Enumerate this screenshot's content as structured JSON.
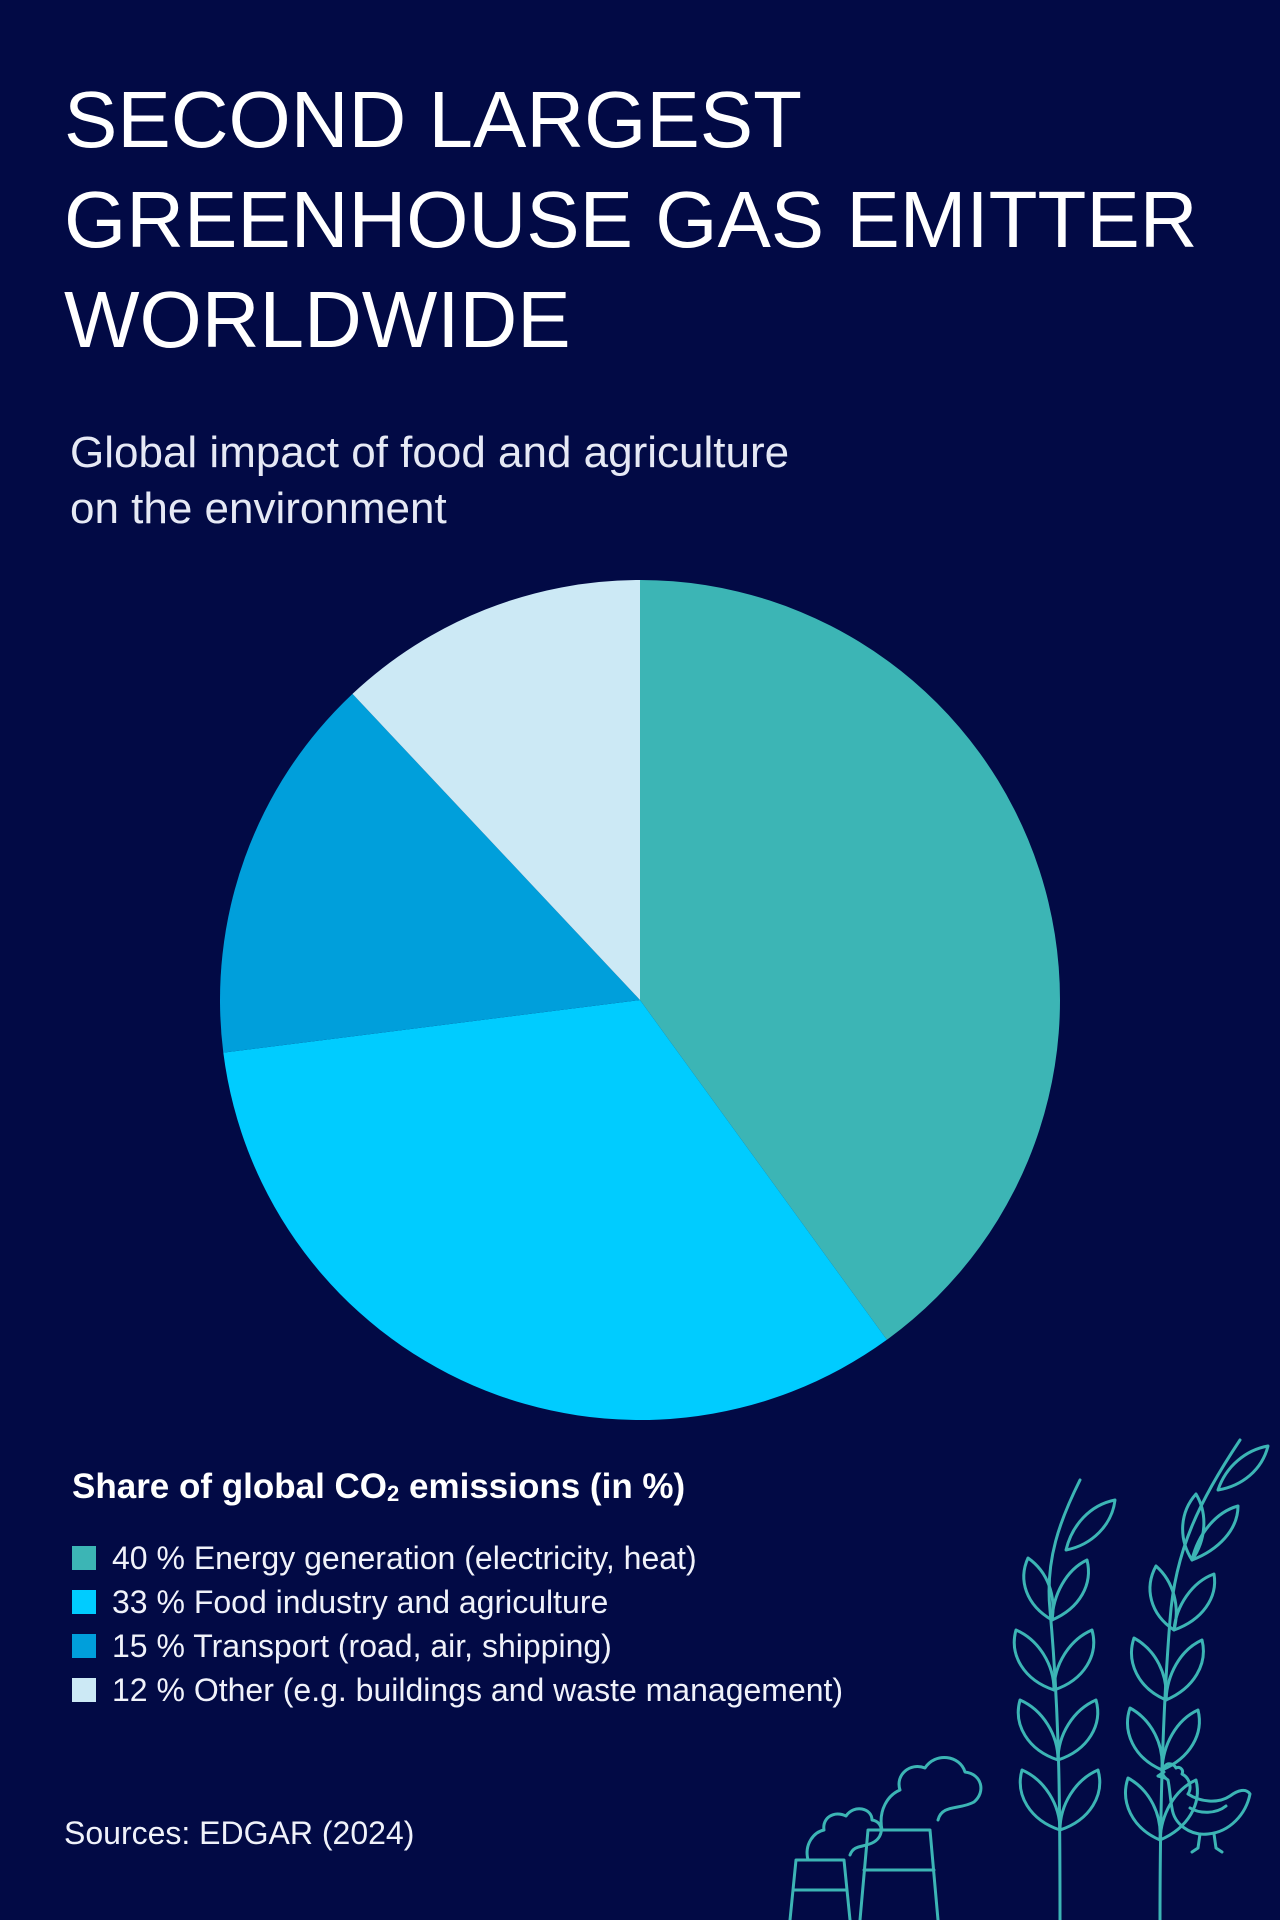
{
  "page": {
    "background": "#020a45",
    "title_lines": [
      "SECOND LARGEST",
      "GREENHOUSE GAS EMITTER",
      "WORLDWIDE"
    ],
    "subtitle_lines": [
      "Global impact of food and agriculture",
      "on the environment"
    ],
    "legend_title": "Share of global CO",
    "legend_title_sub": "2",
    "legend_title_suffix": " emissions (in %)",
    "source": "Sources: EDGAR (2024)",
    "decoration_icons": [
      "wheat-icon",
      "factory-chimney-icon",
      "chicken-icon"
    ]
  },
  "chart_data": {
    "type": "pie",
    "title": "SECOND LARGEST GREENHOUSE GAS EMITTER WORLDWIDE",
    "subtitle": "Global impact of food and agriculture on the environment",
    "legend_title": "Share of global CO2 emissions (in %)",
    "slices": [
      {
        "label": "40 % Energy generation (electricity, heat)",
        "value": 40,
        "color": "#3cb5b5"
      },
      {
        "label": "33 % Food industry and agriculture",
        "value": 33,
        "color": "#00ccff"
      },
      {
        "label": "15 % Transport (road, air, shipping)",
        "value": 15,
        "color": "#009fdb"
      },
      {
        "label": "12 % Other (e.g. buildings and waste management)",
        "value": 12,
        "color": "#cce9f5"
      }
    ],
    "legend_placement": "bottom-left",
    "source": "Sources: EDGAR (2024)"
  }
}
